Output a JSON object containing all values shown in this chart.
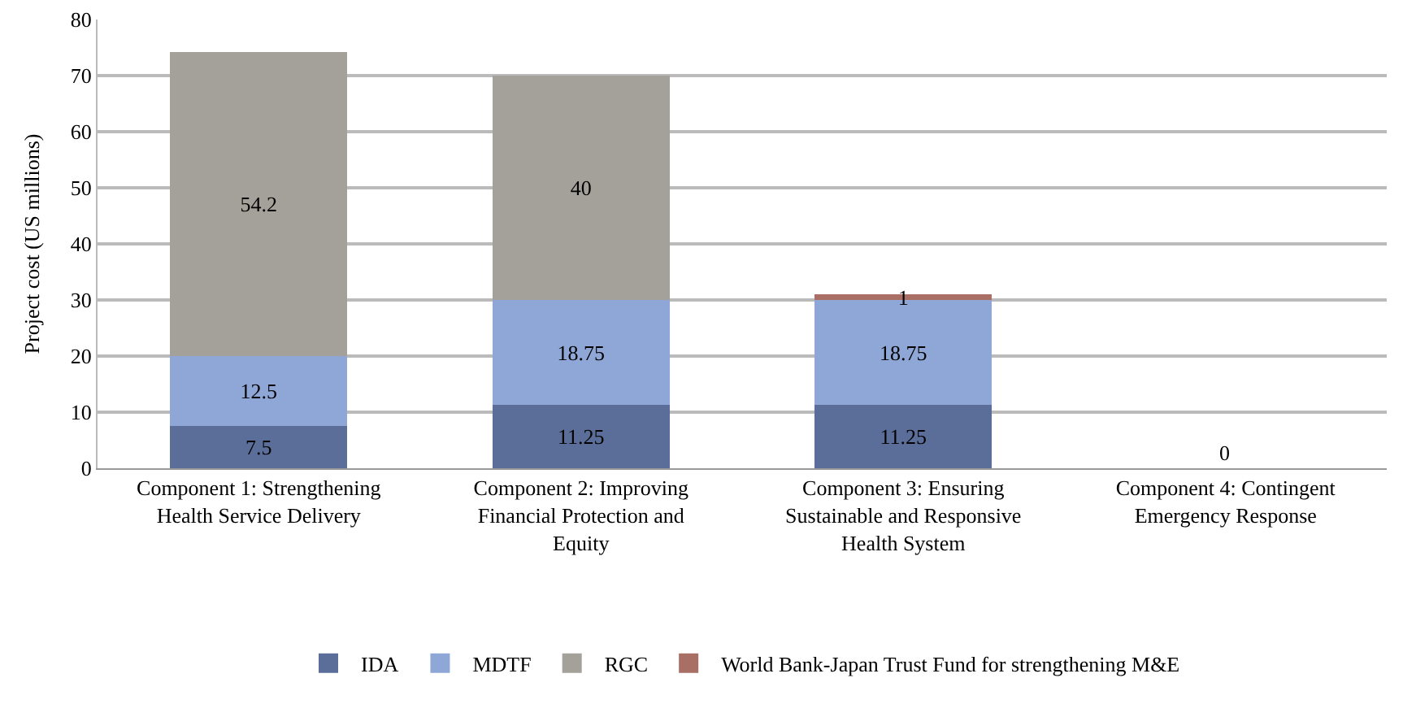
{
  "chart_data": {
    "type": "bar",
    "stacked": true,
    "ylabel": "Project cost (US millions)",
    "categories": [
      "Component 1: Strengthening Health Service Delivery",
      "Component 2: Improving Financial Protection and Equity",
      "Component 3: Ensuring Sustainable and Responsive Health System",
      "Component 4: Contingent Emergency Response"
    ],
    "series": [
      {
        "name": "IDA",
        "color": "#5b6e99",
        "values": [
          7.5,
          11.25,
          11.25,
          0
        ],
        "value_labels": [
          "7.5",
          "11.25",
          "11.25",
          "0"
        ]
      },
      {
        "name": "MDTF",
        "color": "#8fa7d6",
        "values": [
          12.5,
          18.75,
          18.75,
          0
        ],
        "value_labels": [
          "12.5",
          "18.75",
          "18.75",
          null
        ]
      },
      {
        "name": "RGC",
        "color": "#a3a19a",
        "values": [
          54.2,
          40,
          0,
          0
        ],
        "value_labels": [
          "54.2",
          "40",
          null,
          null
        ]
      },
      {
        "name": "World Bank-Japan Trust Fund for strengthening M&E",
        "color": "#a96e64",
        "values": [
          0,
          0,
          1,
          0
        ],
        "value_labels": [
          null,
          null,
          "1",
          null
        ]
      }
    ],
    "ylim": [
      0,
      80
    ],
    "yticks": [
      0,
      10,
      20,
      30,
      40,
      50,
      60,
      70,
      80
    ],
    "grid": "y",
    "legend": "bottom"
  }
}
